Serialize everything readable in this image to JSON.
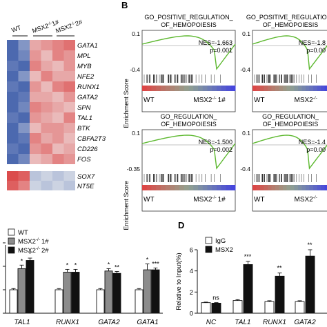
{
  "panel_labels": [
    "B",
    "D"
  ],
  "heatmap": {
    "groups": [
      "WT",
      "MSX2",
      "-/-",
      "1#",
      "MSX2",
      "-/-",
      "2#"
    ],
    "genes_top": [
      "GATA1",
      "MPL",
      "MYB",
      "NFE2",
      "RUNX1",
      "GATA2",
      "SPN",
      "TAL1",
      "BTK",
      "CBFA2T3",
      "CD226",
      "FOS"
    ],
    "genes_bottom": [
      "SOX7",
      "NT5E"
    ],
    "colors": {
      "low": "#3a5aa8",
      "high": "#d93a3a",
      "mid": "#f1f1f1"
    }
  },
  "gsea": [
    {
      "title1": "GO_POSITIVE_REGULATION_",
      "title2": "OF_HEMOPOIESIS",
      "nes": "NES=-1.663",
      "p": "p=0.001",
      "ytop": "0.1",
      "ybot": "-0.4",
      "xleft": "WT",
      "xright": "MSX2",
      "sup": "-/-",
      "tag": "1#"
    },
    {
      "title1": "GO_POSITIVE_REGULATION_",
      "title2": "OF_HEMOPOIESIS",
      "nes": "NES=-1.8",
      "p": "p=0.00",
      "ytop": "0.1",
      "ybot": "-0.4",
      "xleft": "WT",
      "xright": "MSX2",
      "sup": "-/-",
      "tag": ""
    },
    {
      "title1": "GO_REGULATION_",
      "title2": "OF_HEMOPOIESIS",
      "nes": "NES=-1.500",
      "p": "p=0.002",
      "ytop": "0.1",
      "ybot": "-0.35",
      "xleft": "WT",
      "xright": "MSX2",
      "sup": "-/-",
      "tag": "1#"
    },
    {
      "title1": "GO_REGULATION_",
      "title2": "OF_HEMOPOIESIS",
      "nes": "NES=-1.4",
      "p": "p=0.00",
      "ytop": "0.1",
      "ybot": "-0.4",
      "xleft": "WT",
      "xright": "MSX2",
      "sup": "-/-",
      "tag": ""
    }
  ],
  "gsea_ylabel": "Enrichment Score",
  "chart_data": [
    {
      "type": "bar",
      "categories": [
        "TAL1",
        "RUNX1",
        "GATA2",
        "GATA1"
      ],
      "series": [
        {
          "name": "WT",
          "values": [
            1,
            1,
            1,
            1
          ],
          "errors": [
            0.05,
            0.05,
            0.05,
            0.05
          ],
          "color": "#ffffff"
        },
        {
          "name": "MSX2-/- 1#",
          "values": [
            1.9,
            1.75,
            1.8,
            1.85
          ],
          "errors": [
            0.15,
            0.12,
            0.1,
            0.25
          ],
          "color": "#8c8c8c"
        },
        {
          "name": "MSX2-/- 2#",
          "values": [
            2.25,
            1.75,
            1.7,
            1.85
          ],
          "errors": [
            0.1,
            0.12,
            0.08,
            0.08
          ],
          "color": "#111111"
        }
      ],
      "sig": [
        [
          "",
          "*",
          "*"
        ],
        [
          "",
          "*",
          "*"
        ],
        [
          "",
          "*",
          "**"
        ],
        [
          "",
          "*",
          "***"
        ]
      ],
      "legend": [
        "WT",
        "MSX2",
        "-/-",
        "1#",
        "MSX2",
        "-/-",
        "2#"
      ]
    },
    {
      "type": "bar",
      "categories": [
        "NC",
        "TAL1",
        "RUNX1",
        "GATA2"
      ],
      "ylabel": "Relative to Input(%)",
      "yticks": [
        "0",
        "2",
        "4",
        "6"
      ],
      "ylim": [
        0,
        6
      ],
      "series": [
        {
          "name": "IgG",
          "values": [
            1,
            1.2,
            1.1,
            1.1
          ],
          "errors": [
            0.05,
            0.08,
            0.08,
            0.08
          ],
          "color": "#ffffff"
        },
        {
          "name": "MSX2",
          "values": [
            0.95,
            4.6,
            3.5,
            5.4
          ],
          "errors": [
            0.05,
            0.3,
            0.3,
            0.6
          ],
          "color": "#111111"
        }
      ],
      "sig": [
        "ns",
        "***",
        "**",
        "**"
      ],
      "legend": [
        "IgG",
        "MSX2"
      ]
    }
  ]
}
